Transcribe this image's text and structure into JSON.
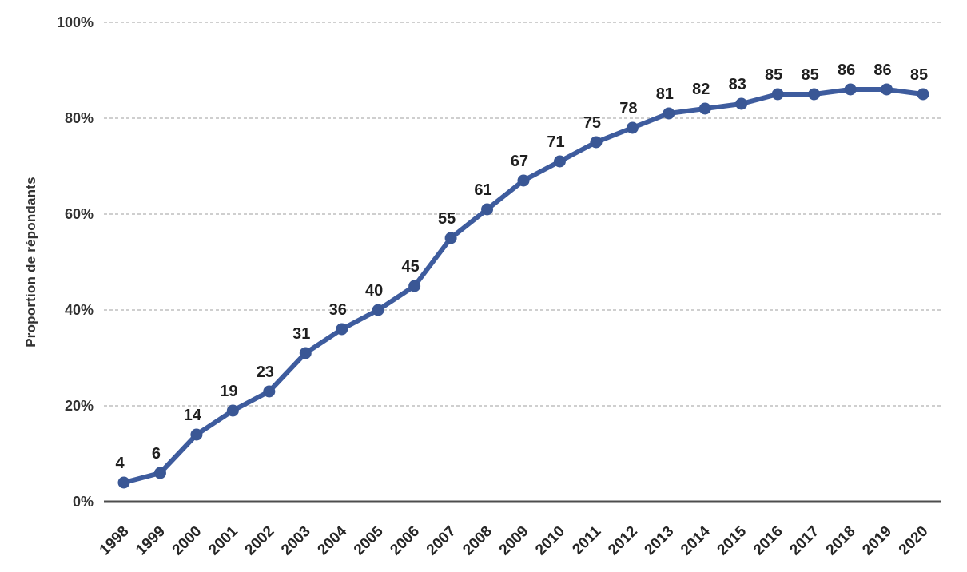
{
  "chart_data": {
    "type": "line",
    "title": "",
    "xlabel": "",
    "ylabel": "Proportion de répondants",
    "categories": [
      "1998",
      "1999",
      "2000",
      "2001",
      "2002",
      "2003",
      "2004",
      "2005",
      "2006",
      "2007",
      "2008",
      "2009",
      "2010",
      "2011",
      "2012",
      "2013",
      "2014",
      "2015",
      "2016",
      "2017",
      "2018",
      "2019",
      "2020"
    ],
    "values": [
      4,
      6,
      14,
      19,
      23,
      31,
      36,
      40,
      45,
      55,
      61,
      67,
      71,
      75,
      78,
      81,
      82,
      83,
      85,
      85,
      86,
      86,
      85
    ],
    "data_labels": [
      "4",
      "6",
      "14",
      "19",
      "23",
      "31",
      "36",
      "40",
      "45",
      "55",
      "61",
      "67",
      "71",
      "75",
      "78",
      "81",
      "82",
      "83",
      "85",
      "85",
      "86",
      "86",
      "85"
    ],
    "ylim": [
      0,
      100
    ],
    "yticks": [
      0,
      20,
      40,
      60,
      80,
      100
    ],
    "ytick_labels": [
      "0%",
      "20%",
      "40%",
      "60%",
      "80%",
      "100%"
    ],
    "grid": "horizontal-dashed",
    "legend": "none",
    "data_labels_visible": true,
    "colors": {
      "line": "#3E5C9E",
      "marker": "#3A5795",
      "data_label": "#1f1f1f",
      "tick_label": "#262626",
      "grid_line": "#BFBFBF",
      "axis_line": "#4D4D4D",
      "background": "#FFFFFF"
    }
  }
}
